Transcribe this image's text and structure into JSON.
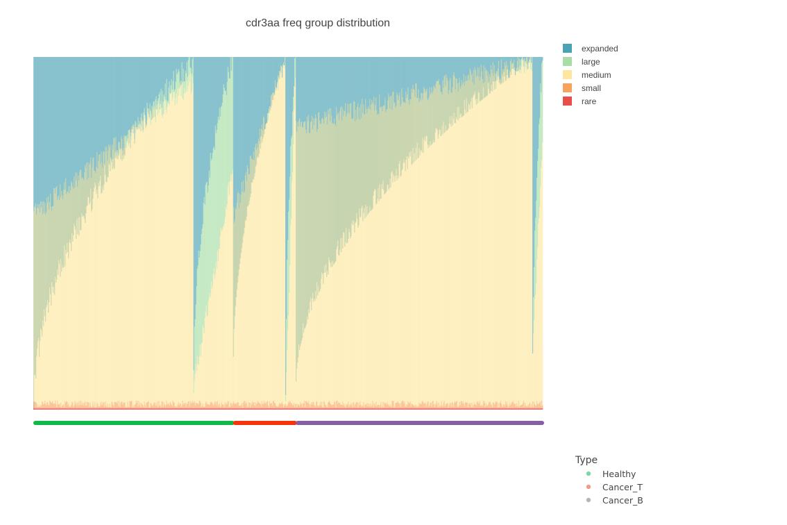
{
  "colors": {
    "expanded": "#4aa3b5",
    "large": "#a8dea6",
    "medium": "#fde7a0",
    "small": "#f8a35c",
    "rare": "#e84f4a",
    "healthy_bar": "#10b845",
    "cancer_t_bar": "#f5340e",
    "cancer_b_bar": "#855ea5",
    "healthy_dot": "#7ad9a4",
    "cancer_t_dot": "#f29b8a",
    "cancer_b_dot": "#b6b0c2"
  },
  "chart_data": {
    "type": "bar",
    "stacked": true,
    "normalized": true,
    "title": "cdr3aa freq group distribution",
    "xlabel": "",
    "ylabel": "",
    "ylim": [
      0,
      1
    ],
    "grid": false,
    "legend_position": "top-right",
    "series": [
      {
        "name": "expanded",
        "color_key": "expanded"
      },
      {
        "name": "large",
        "color_key": "large"
      },
      {
        "name": "medium",
        "color_key": "medium"
      },
      {
        "name": "small",
        "color_key": "small"
      },
      {
        "name": "rare",
        "color_key": "rare"
      }
    ],
    "sample_groups": [
      {
        "type": "Healthy",
        "color_key": "healthy_bar",
        "subgroups": [
          {
            "samples": 230,
            "expanded_top": [
              0.0,
              0.85
            ],
            "large_top": [
              0.0,
              0.99
            ],
            "medium_top": [
              0.55,
              0.93
            ]
          },
          {
            "samples": 57,
            "expanded_top": [
              1.0,
              1.0
            ],
            "large_top": [
              0.12,
              1.0
            ],
            "medium_top": [
              0.07,
              0.68
            ]
          }
        ]
      },
      {
        "type": "Cancer_T",
        "color_key": "cancer_t_bar",
        "subgroups": [
          {
            "samples": 75,
            "expanded_top": [
              0.15,
              0.99
            ],
            "large_top": [
              0.06,
              0.99
            ],
            "medium_top": [
              0.55,
              0.99
            ]
          },
          {
            "samples": 15,
            "expanded_top": [
              1.0,
              1.0
            ],
            "large_top": [
              0.03,
              1.0
            ],
            "medium_top": [
              0.02,
              0.97
            ]
          }
        ]
      },
      {
        "type": "Cancer_B",
        "color_key": "cancer_b_bar",
        "subgroups": [
          {
            "samples": 340,
            "expanded_top": [
              0.08,
              0.99
            ],
            "large_top": [
              0.05,
              0.99
            ],
            "medium_top": [
              0.8,
              0.99
            ]
          },
          {
            "samples": 15,
            "expanded_top": [
              1.0,
              1.0
            ],
            "large_top": [
              0.05,
              1.0
            ],
            "medium_top": [
              0.18,
              0.75
            ]
          }
        ]
      }
    ]
  },
  "legend": {
    "freq_groups": [
      "expanded",
      "large",
      "medium",
      "small",
      "rare"
    ],
    "type_title": "Type",
    "types": [
      "Healthy",
      "Cancer_T",
      "Cancer_B"
    ]
  }
}
